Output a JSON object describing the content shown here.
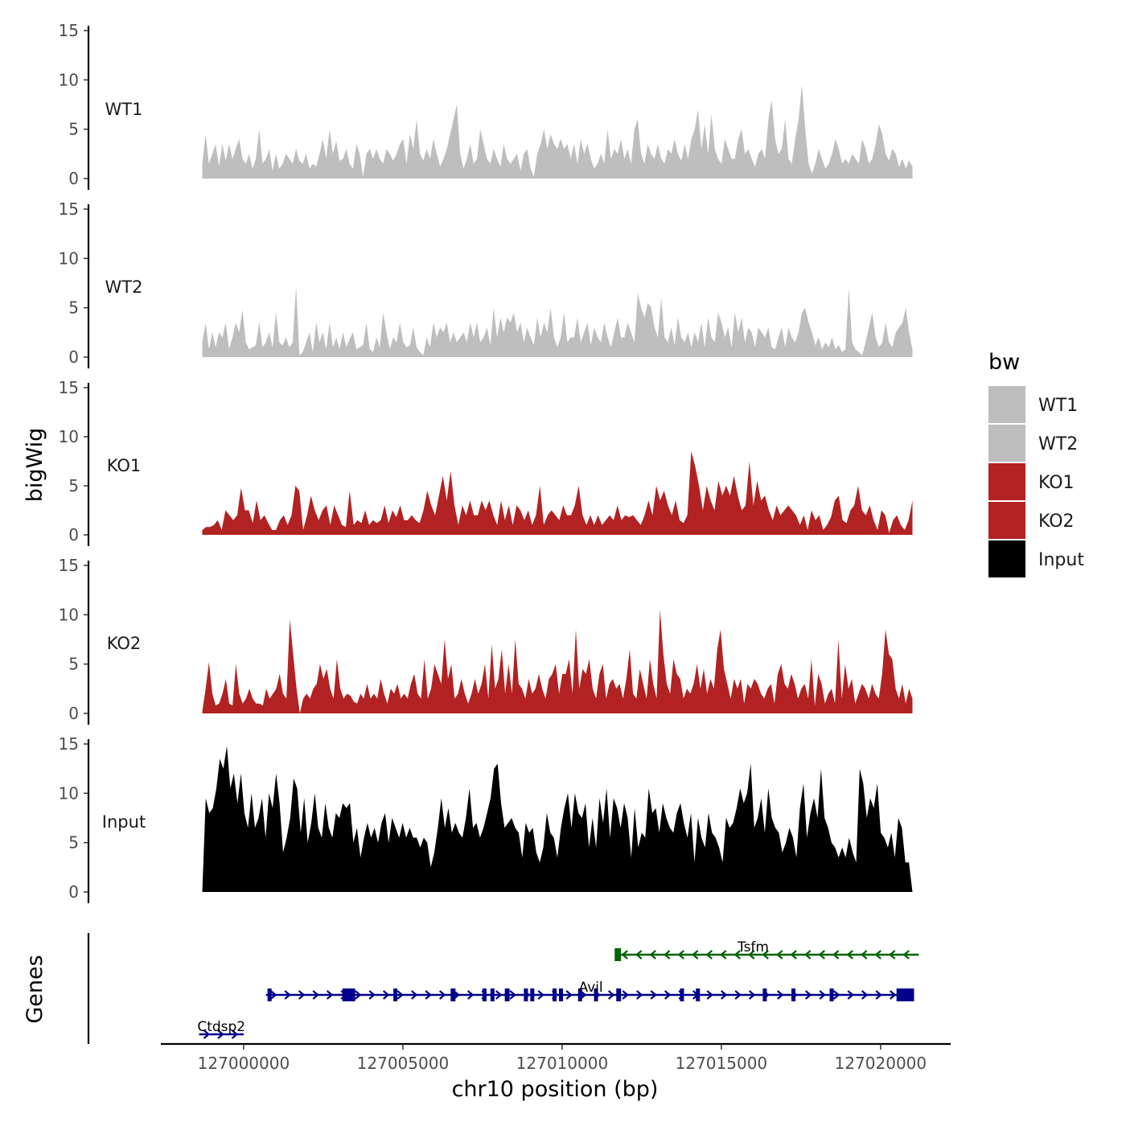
{
  "chart_data": {
    "type": "area",
    "chromosome": "chr10",
    "xlabel": "chr10 position (bp)",
    "ylabel": "bigWig",
    "genes_label": "Genes",
    "xlim": [
      126997400,
      127022200
    ],
    "x_ticks": [
      127000000,
      127005000,
      127010000,
      127015000,
      127020000
    ],
    "x_tick_labels": [
      "127000000",
      "127005000",
      "127010000",
      "127015000",
      "127020000"
    ],
    "ylim": [
      0,
      15
    ],
    "y_ticks": [
      0,
      5,
      10,
      15
    ],
    "y_tick_labels": [
      "0",
      "5",
      "10",
      "15"
    ],
    "track_x_range": [
      126998700,
      127021000
    ],
    "legend": {
      "title": "bw",
      "entries": [
        {
          "label": "WT1",
          "color": "#BEBEBE"
        },
        {
          "label": "WT2",
          "color": "#BEBEBE"
        },
        {
          "label": "KO1",
          "color": "#B22222"
        },
        {
          "label": "KO2",
          "color": "#B22222"
        },
        {
          "label": "Input",
          "color": "#000000"
        }
      ]
    },
    "series": [
      {
        "name": "WT1",
        "color": "#BEBEBE",
        "values": [
          1.5,
          4.5,
          1.5,
          2.5,
          3.5,
          1.2,
          3.5,
          1.8,
          3.5,
          2.0,
          3.0,
          4.0,
          2.0,
          1.5,
          2.5,
          1.0,
          2.0,
          5.0,
          1.5,
          2.0,
          3.0,
          0.8,
          2.5,
          1.0,
          1.5,
          2.5,
          2.0,
          1.5,
          3.0,
          1.8,
          1.5,
          2.5,
          1.0,
          1.5,
          1.2,
          2.5,
          4.0,
          2.0,
          5.0,
          2.5,
          3.8,
          1.8,
          2.0,
          3.0,
          1.5,
          1.0,
          3.5,
          2.5,
          0.2,
          2.5,
          3.0,
          2.0,
          3.0,
          2.0,
          1.5,
          3.0,
          2.5,
          1.8,
          2.5,
          3.5,
          4.0,
          1.5,
          4.5,
          3.0,
          6.0,
          2.5,
          1.8,
          3.0,
          2.0,
          4.0,
          2.5,
          1.2,
          2.0,
          3.0,
          4.5,
          6.0,
          7.5,
          2.5,
          1.0,
          2.0,
          3.5,
          1.5,
          2.0,
          5.0,
          3.5,
          2.0,
          1.5,
          3.0,
          2.0,
          1.2,
          3.5,
          2.0,
          1.5,
          2.0,
          2.5,
          0.8,
          2.5,
          3.0,
          1.0,
          0.2,
          2.5,
          3.5,
          5.0,
          3.0,
          4.5,
          3.5,
          3.0,
          4.0,
          3.0,
          3.5,
          2.0,
          3.5,
          1.5,
          4.0,
          2.5,
          3.5,
          2.0,
          1.0,
          1.5,
          2.5,
          1.5,
          5.0,
          2.0,
          3.0,
          2.5,
          4.0,
          2.0,
          3.0,
          1.5,
          5.0,
          6.0,
          2.5,
          1.5,
          3.5,
          2.5,
          2.0,
          3.5,
          2.0,
          1.5,
          3.0,
          2.5,
          4.0,
          2.5,
          1.8,
          3.5,
          2.0,
          4.0,
          5.0,
          7.0,
          3.0,
          5.5,
          2.5,
          6.5,
          3.0,
          2.0,
          1.5,
          4.0,
          3.0,
          2.0,
          2.0,
          4.0,
          5.0,
          2.5,
          3.0,
          2.0,
          1.2,
          2.5,
          3.0,
          2.0,
          6.0,
          8.0,
          4.0,
          2.5,
          3.0,
          6.0,
          2.0,
          1.5,
          4.0,
          6.0,
          9.5,
          5.0,
          1.5,
          0.5,
          1.5,
          3.0,
          2.0,
          1.0,
          1.5,
          2.5,
          4.0,
          3.0,
          1.5,
          2.0,
          1.5,
          2.5,
          2.0,
          1.5,
          4.0,
          3.0,
          1.5,
          2.0,
          3.5,
          5.5,
          4.5,
          2.5,
          1.8,
          3.0,
          2.5,
          1.2,
          2.0,
          1.0,
          1.8,
          1.2
        ]
      },
      {
        "name": "WT2",
        "color": "#BEBEBE",
        "values": [
          1.5,
          3.5,
          0.8,
          2.5,
          1.0,
          2.5,
          2.0,
          3.5,
          0.8,
          2.0,
          3.5,
          2.5,
          4.8,
          1.5,
          0.8,
          1.0,
          1.2,
          3.5,
          1.0,
          1.5,
          2.5,
          1.0,
          4.5,
          1.5,
          1.2,
          2.0,
          1.0,
          1.5,
          7.2,
          0.2,
          0.5,
          1.5,
          2.5,
          0.5,
          3.5,
          1.5,
          2.5,
          0.8,
          3.5,
          1.0,
          2.0,
          0.8,
          2.5,
          1.0,
          1.8,
          2.5,
          0.8,
          1.0,
          1.2,
          3.5,
          0.8,
          0.5,
          2.0,
          1.0,
          4.5,
          2.5,
          0.8,
          2.0,
          1.5,
          3.5,
          1.5,
          1.0,
          1.2,
          3.0,
          1.0,
          0.5,
          0.2,
          2.0,
          1.0,
          3.5,
          2.0,
          3.0,
          2.5,
          3.5,
          1.5,
          2.5,
          1.5,
          2.0,
          2.5,
          1.5,
          3.5,
          2.0,
          3.5,
          1.5,
          2.0,
          3.0,
          1.2,
          5.0,
          2.0,
          4.0,
          2.5,
          4.0,
          3.5,
          4.5,
          2.5,
          3.5,
          1.5,
          3.0,
          2.0,
          1.2,
          4.0,
          2.0,
          3.5,
          2.5,
          5.0,
          2.0,
          1.0,
          2.0,
          4.5,
          1.5,
          2.0,
          2.0,
          4.0,
          1.5,
          2.5,
          3.5,
          1.2,
          3.0,
          2.0,
          1.5,
          3.5,
          2.0,
          1.0,
          2.5,
          4.0,
          2.0,
          2.0,
          3.5,
          2.5,
          1.5,
          6.5,
          5.0,
          4.0,
          5.5,
          5.0,
          3.0,
          2.0,
          6.0,
          2.0,
          1.5,
          3.0,
          1.2,
          4.0,
          2.0,
          1.5,
          2.5,
          1.0,
          2.5,
          1.5,
          3.5,
          1.0,
          4.0,
          2.0,
          1.5,
          4.5,
          3.5,
          2.0,
          3.0,
          1.0,
          4.5,
          2.5,
          4.0,
          1.5,
          3.0,
          2.5,
          1.0,
          3.0,
          2.5,
          2.0,
          3.0,
          1.0,
          0.8,
          2.0,
          3.0,
          1.0,
          3.0,
          2.0,
          1.5,
          2.5,
          4.5,
          5.0,
          3.5,
          2.5,
          1.2,
          2.0,
          0.8,
          1.5,
          1.0,
          2.0,
          0.8,
          1.2,
          0.5,
          0.8,
          7.0,
          1.5,
          0.8,
          0.5,
          0.2,
          1.5,
          3.0,
          4.5,
          2.0,
          1.0,
          1.5,
          3.5,
          1.5,
          1.0,
          2.5,
          3.0,
          3.5,
          5.0,
          2.5,
          0.8
        ]
      },
      {
        "name": "KO1",
        "color": "#B22222",
        "values": [
          0.5,
          0.8,
          0.8,
          1.0,
          1.5,
          0.5,
          2.5,
          2.0,
          1.5,
          2.0,
          4.8,
          2.5,
          2.5,
          1.2,
          3.5,
          1.5,
          2.0,
          1.2,
          0.5,
          0.5,
          1.5,
          2.0,
          1.0,
          2.0,
          5.0,
          4.5,
          0.5,
          2.0,
          4.0,
          2.5,
          1.5,
          2.5,
          3.0,
          1.0,
          3.0,
          2.0,
          1.0,
          0.8,
          4.5,
          1.0,
          1.5,
          1.2,
          2.5,
          1.0,
          1.5,
          1.2,
          1.5,
          3.0,
          1.2,
          2.5,
          1.8,
          3.0,
          1.5,
          1.5,
          2.0,
          1.5,
          1.2,
          2.5,
          4.5,
          3.0,
          2.0,
          4.0,
          6.0,
          3.5,
          6.5,
          3.0,
          1.0,
          3.0,
          2.0,
          3.5,
          2.0,
          2.0,
          3.5,
          2.5,
          3.5,
          2.0,
          1.0,
          3.5,
          1.5,
          3.0,
          1.0,
          3.0,
          2.5,
          1.5,
          2.5,
          1.0,
          2.0,
          5.0,
          1.0,
          2.0,
          2.5,
          2.0,
          1.5,
          3.0,
          2.0,
          2.0,
          3.0,
          5.0,
          2.0,
          1.0,
          2.0,
          1.0,
          2.0,
          1.0,
          1.5,
          2.0,
          1.5,
          3.0,
          1.5,
          2.0,
          1.8,
          2.0,
          1.5,
          1.0,
          2.0,
          3.5,
          2.0,
          5.0,
          3.5,
          4.5,
          3.0,
          2.0,
          3.5,
          1.5,
          1.2,
          2.0,
          8.5,
          7.0,
          5.0,
          2.5,
          5.0,
          3.5,
          2.5,
          5.5,
          4.0,
          5.0,
          4.0,
          6.0,
          4.0,
          2.5,
          3.0,
          7.5,
          3.0,
          5.5,
          3.5,
          4.0,
          2.5,
          1.5,
          3.0,
          2.0,
          2.5,
          3.0,
          2.5,
          2.0,
          1.0,
          2.0,
          0.5,
          2.5,
          1.5,
          2.0,
          0.5,
          1.0,
          1.8,
          3.5,
          4.0,
          1.5,
          1.2,
          2.5,
          3.0,
          5.0,
          2.5,
          2.0,
          3.0,
          1.5,
          0.5,
          2.5,
          2.0,
          0.2,
          1.5,
          2.0,
          1.0,
          0.5,
          1.5,
          3.5
        ]
      },
      {
        "name": "KO2",
        "color": "#B22222",
        "values": [
          0.2,
          2.5,
          5.2,
          2.0,
          0.8,
          1.0,
          2.0,
          3.5,
          1.0,
          0.8,
          5.0,
          2.0,
          1.0,
          1.5,
          2.5,
          1.5,
          1.0,
          1.0,
          0.8,
          2.5,
          1.5,
          2.0,
          2.5,
          4.0,
          2.0,
          1.5,
          9.5,
          6.0,
          2.5,
          0.0,
          1.5,
          2.0,
          1.5,
          2.5,
          3.0,
          5.0,
          3.5,
          4.5,
          2.5,
          1.5,
          5.5,
          2.5,
          1.5,
          2.0,
          1.8,
          1.2,
          1.0,
          2.0,
          1.5,
          3.0,
          1.5,
          2.0,
          1.5,
          3.5,
          2.0,
          1.0,
          2.5,
          2.0,
          3.0,
          1.5,
          2.0,
          1.5,
          3.0,
          4.0,
          2.0,
          1.5,
          5.5,
          1.5,
          2.5,
          5.0,
          4.0,
          3.0,
          7.5,
          3.5,
          5.0,
          1.5,
          2.0,
          3.5,
          2.0,
          1.0,
          2.0,
          3.5,
          2.0,
          3.0,
          5.0,
          1.5,
          7.0,
          2.5,
          3.5,
          6.5,
          2.0,
          5.0,
          2.0,
          7.5,
          3.0,
          2.5,
          1.5,
          3.5,
          2.0,
          2.5,
          4.0,
          2.5,
          1.5,
          3.5,
          4.0,
          5.0,
          2.0,
          4.0,
          4.0,
          5.5,
          2.0,
          8.5,
          2.5,
          4.5,
          4.0,
          5.5,
          2.5,
          1.5,
          4.0,
          5.0,
          1.5,
          3.0,
          3.5,
          2.5,
          3.0,
          1.5,
          3.5,
          6.5,
          2.0,
          1.5,
          4.5,
          3.0,
          1.5,
          5.5,
          3.0,
          1.5,
          10.5,
          6.0,
          3.0,
          2.0,
          5.5,
          4.0,
          3.5,
          1.5,
          2.5,
          2.0,
          3.0,
          5.0,
          2.5,
          4.5,
          2.0,
          3.5,
          2.5,
          6.5,
          8.5,
          4.5,
          3.0,
          1.5,
          3.5,
          2.5,
          3.5,
          1.0,
          3.0,
          2.5,
          3.5,
          3.0,
          2.0,
          1.5,
          2.5,
          3.0,
          1.0,
          4.0,
          5.0,
          3.0,
          2.5,
          4.0,
          3.0,
          1.5,
          2.5,
          3.0,
          1.5,
          5.5,
          0.8,
          4.0,
          3.0,
          1.0,
          2.0,
          2.5,
          1.0,
          7.5,
          1.5,
          5.0,
          2.5,
          3.5,
          1.0,
          2.0,
          3.0,
          2.5,
          1.5,
          3.0,
          2.0,
          1.5,
          4.0,
          8.5,
          6.0,
          5.5,
          2.5,
          1.5,
          3.0,
          1.0,
          2.5,
          1.5
        ]
      },
      {
        "name": "Input",
        "color": "#000000",
        "values": [
          0.0,
          9.5,
          8.0,
          8.5,
          10.5,
          13.5,
          12.5,
          14.8,
          10.5,
          12.0,
          9.0,
          12.0,
          8.0,
          6.5,
          10.0,
          6.5,
          7.5,
          9.5,
          5.5,
          10.0,
          8.5,
          12.0,
          9.0,
          4.0,
          5.5,
          7.5,
          11.5,
          10.5,
          6.0,
          9.5,
          5.0,
          7.0,
          10.0,
          6.5,
          5.5,
          9.0,
          6.5,
          5.5,
          8.0,
          7.5,
          9.0,
          8.5,
          9.0,
          5.0,
          6.5,
          3.5,
          5.5,
          7.0,
          5.5,
          6.5,
          5.0,
          7.0,
          8.0,
          5.0,
          7.5,
          6.5,
          5.5,
          7.0,
          5.5,
          6.5,
          5.5,
          5.5,
          4.5,
          5.5,
          5.0,
          2.5,
          4.0,
          6.5,
          9.5,
          6.5,
          8.5,
          6.0,
          7.0,
          6.0,
          5.5,
          7.5,
          10.5,
          6.5,
          7.0,
          5.5,
          6.5,
          8.0,
          9.5,
          12.5,
          13.0,
          9.0,
          6.5,
          7.0,
          7.5,
          6.5,
          6.0,
          3.5,
          7.0,
          6.0,
          6.5,
          4.0,
          3.0,
          4.5,
          8.0,
          6.0,
          5.5,
          3.5,
          6.5,
          8.5,
          10.0,
          6.5,
          10.0,
          8.0,
          7.5,
          9.0,
          4.5,
          7.5,
          4.5,
          9.5,
          7.0,
          10.5,
          5.5,
          9.5,
          8.5,
          6.5,
          9.0,
          7.5,
          3.5,
          8.5,
          4.5,
          6.0,
          5.5,
          10.5,
          8.0,
          8.5,
          6.0,
          9.0,
          7.5,
          6.5,
          6.0,
          8.0,
          9.0,
          7.0,
          5.5,
          8.0,
          3.0,
          7.5,
          5.5,
          4.5,
          8.0,
          6.0,
          5.5,
          4.5,
          3.0,
          7.5,
          6.5,
          7.0,
          8.5,
          10.5,
          9.0,
          10.0,
          13.0,
          6.5,
          7.5,
          9.5,
          6.0,
          10.5,
          7.5,
          6.5,
          6.0,
          4.0,
          5.0,
          6.5,
          5.5,
          3.5,
          8.5,
          11.0,
          5.5,
          8.0,
          9.5,
          7.5,
          12.5,
          7.5,
          6.5,
          5.0,
          4.5,
          3.5,
          4.5,
          3.5,
          5.5,
          4.0,
          3.0,
          12.5,
          11.0,
          7.5,
          9.5,
          8.5,
          11.0,
          6.0,
          5.5,
          4.5,
          6.0,
          3.5,
          7.5,
          6.5,
          3.0,
          3.0,
          0.0
        ]
      }
    ],
    "genes": [
      {
        "name": "Tsfm",
        "strand": "-",
        "color": "#006400",
        "start": 127011700,
        "end": 127021200,
        "exons": [
          [
            127011650,
            127011850
          ]
        ],
        "label_pos": 127016000
      },
      {
        "name": "Avil",
        "strand": "+",
        "color": "#00008B",
        "start": 127000700,
        "end": 127021050,
        "exons": [
          [
            127000750,
            127000820
          ],
          [
            127003100,
            127003500
          ],
          [
            127004700,
            127004760
          ],
          [
            127006500,
            127006650
          ],
          [
            127007500,
            127007560
          ],
          [
            127007750,
            127007820
          ],
          [
            127008200,
            127008350
          ],
          [
            127008800,
            127008860
          ],
          [
            127009000,
            127009060
          ],
          [
            127009700,
            127009780
          ],
          [
            127009900,
            127009970
          ],
          [
            127010500,
            127010560
          ],
          [
            127011000,
            127011080
          ],
          [
            127011700,
            127011850
          ],
          [
            127013700,
            127013780
          ],
          [
            127014200,
            127014300
          ],
          [
            127016300,
            127016420
          ],
          [
            127017200,
            127017260
          ],
          [
            127018400,
            127018470
          ],
          [
            127020500,
            127021050
          ]
        ],
        "label_pos": 127010900
      },
      {
        "name": "Ctdsp2",
        "strand": "+",
        "color": "#00008B",
        "start": 126998600,
        "end": 127000000,
        "exons": [],
        "label_pos": 126999300
      }
    ]
  }
}
